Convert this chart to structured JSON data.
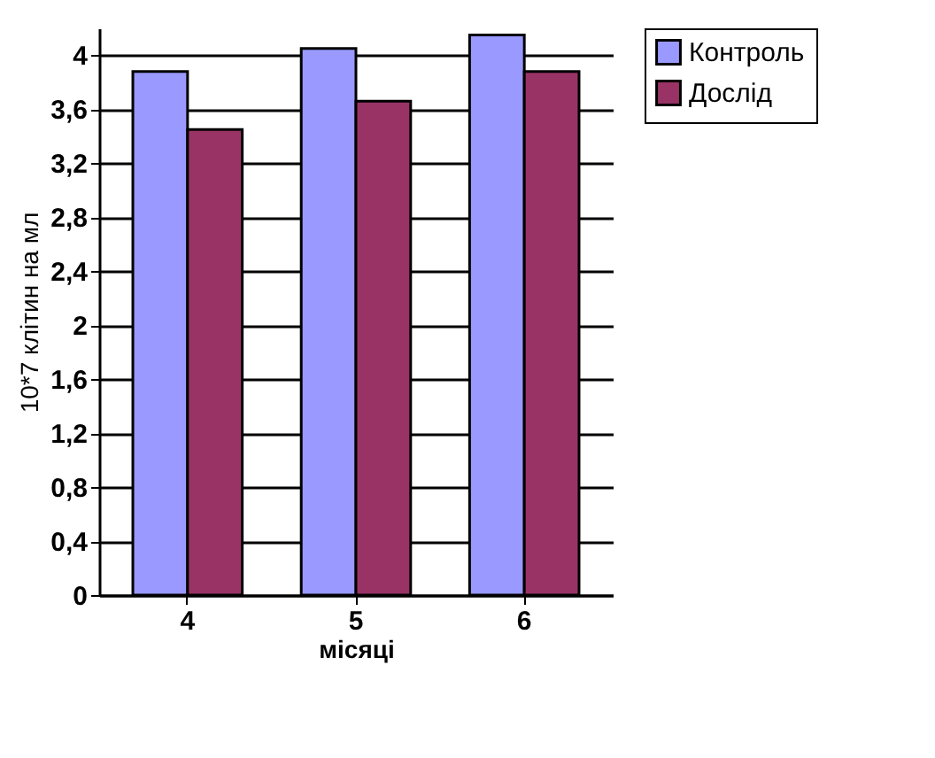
{
  "chart_data": {
    "type": "bar",
    "xlabel": "місяці",
    "ylabel": "10*7 клітин на мл",
    "categories": [
      "4",
      "5",
      "6"
    ],
    "series": [
      {
        "name": "Контроль",
        "color": "#9999ff",
        "values": [
          3.88,
          4.05,
          4.15
        ]
      },
      {
        "name": "Дослід",
        "color": "#993366",
        "values": [
          3.45,
          3.66,
          3.88
        ]
      }
    ],
    "ylim": [
      0,
      4.2
    ],
    "yticks": [
      0,
      {
        "value": 0.4,
        "label": "0,4"
      },
      {
        "value": 0.8,
        "label": "0,8"
      },
      {
        "value": 1.2,
        "label": "1,2"
      },
      {
        "value": 1.6,
        "label": "1,6"
      },
      2,
      {
        "value": 2.4,
        "label": "2,4"
      },
      {
        "value": 2.8,
        "label": "2,8"
      },
      {
        "value": 3.2,
        "label": "3,2"
      },
      {
        "value": 3.6,
        "label": "3,6"
      },
      4
    ],
    "grid": "y",
    "legend": "top right"
  }
}
